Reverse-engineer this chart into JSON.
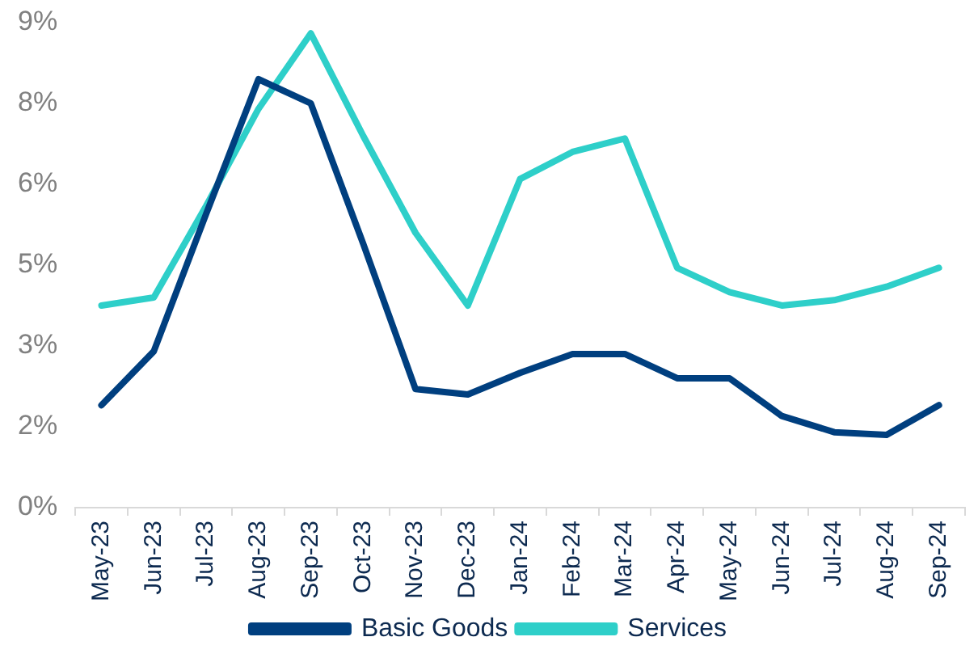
{
  "chart_data": {
    "type": "line",
    "categories": [
      "May-23",
      "Jun-23",
      "Jul-23",
      "Aug-23",
      "Sep-23",
      "Oct-23",
      "Nov-23",
      "Dec-23",
      "Jan-24",
      "Feb-24",
      "Mar-24",
      "Apr-24",
      "May-24",
      "Jun-24",
      "Jul-24",
      "Aug-24",
      "Sep-24"
    ],
    "series": [
      {
        "name": "Basic Goods",
        "color": "#003f7f",
        "values": [
          1.9,
          2.9,
          5.45,
          7.95,
          7.5,
          4.9,
          2.2,
          2.1,
          2.5,
          2.85,
          2.85,
          2.4,
          2.4,
          1.7,
          1.4,
          1.35,
          1.9
        ]
      },
      {
        "name": "Services",
        "color": "#2ecfc9",
        "values": [
          3.75,
          3.9,
          5.6,
          7.4,
          8.8,
          6.9,
          5.1,
          3.75,
          6.1,
          6.6,
          6.85,
          4.45,
          4.0,
          3.75,
          3.85,
          4.1,
          4.45
        ]
      }
    ],
    "ylim": [
      0,
      9
    ],
    "yticks": [
      {
        "value": 0,
        "label": "0%"
      },
      {
        "value": 1.5,
        "label": "2%"
      },
      {
        "value": 3,
        "label": "3%"
      },
      {
        "value": 4.5,
        "label": "5%"
      },
      {
        "value": 6,
        "label": "6%"
      },
      {
        "value": 7.5,
        "label": "8%"
      },
      {
        "value": 9,
        "label": "9%"
      }
    ],
    "grid": false,
    "legend": "bottom",
    "marker": "none",
    "line_style": "solid"
  }
}
